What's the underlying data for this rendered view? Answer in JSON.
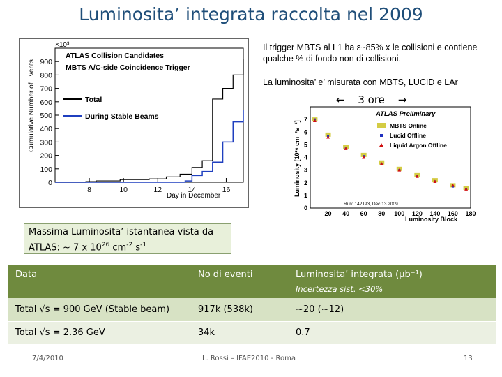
{
  "title": "Luminosita’ integrata raccolta nel 2009",
  "notes": {
    "line1": "Il trigger MBTS al L1 ha ε~85% x le collisioni e contiene qualche % di fondo non di collisioni.",
    "line2": "La luminosita’ e’ misurata con MBTS, LUCID e LAr",
    "arrow_left": "←",
    "arrow_label": "3 ore",
    "arrow_right": "→"
  },
  "lumi_box": {
    "line1": "Massima Luminosita’ istantanea vista da",
    "line2_prefix": "ATLAS: ~ 7 x 10",
    "exp1": "26",
    "line2_mid": " cm",
    "exp2": "-2",
    "line2_s": " s",
    "exp3": "-1"
  },
  "chart_data": [
    {
      "type": "line",
      "legend_header": [
        "ATLAS Collision Candidates",
        "MBTS A/C-side Coincidence Trigger"
      ],
      "xlabel": "Day in December",
      "ylabel": "Cumulative Number of Events",
      "y_multiplier": "×10³",
      "xlim": [
        6,
        17
      ],
      "ylim": [
        0,
        1000
      ],
      "x_ticks": [
        8,
        10,
        12,
        14,
        16
      ],
      "y_ticks": [
        0,
        100,
        200,
        300,
        400,
        500,
        600,
        700,
        800,
        900
      ],
      "legend_position": "middle-left",
      "colors": {
        "total": "#000000",
        "stable": "#1f3fbf"
      },
      "series": [
        {
          "name": "Total",
          "x": [
            6,
            7,
            7.8,
            8.4,
            9,
            9.8,
            10.5,
            11.5,
            12.5,
            13.3,
            14,
            14.6,
            15.2,
            15.8,
            16.4,
            17
          ],
          "y": [
            0,
            0,
            5,
            10,
            10,
            20,
            20,
            25,
            40,
            60,
            110,
            160,
            620,
            700,
            800,
            917
          ]
        },
        {
          "name": "During Stable Beams",
          "x": [
            6,
            13,
            13.6,
            14,
            14.6,
            15.2,
            15.8,
            16.4,
            17
          ],
          "y": [
            0,
            0,
            10,
            50,
            80,
            150,
            300,
            450,
            538
          ]
        }
      ]
    },
    {
      "type": "scatter",
      "title": "ATLAS Preliminary",
      "xlabel": "Luminosity Block",
      "ylabel": "Luminosity [10²⁶ cm⁻²s⁻¹]",
      "xlim": [
        0,
        180
      ],
      "ylim": [
        0,
        8
      ],
      "x_ticks": [
        20,
        40,
        60,
        80,
        100,
        120,
        140,
        160,
        180
      ],
      "y_ticks": [
        0,
        1,
        2,
        3,
        4,
        5,
        6,
        7
      ],
      "legend_position": "top-right",
      "run_label": "Run: 142193, Dec 13 2009",
      "series": [
        {
          "name": "MBTS Online",
          "color": "#d4cc44",
          "x": [
            5,
            20,
            40,
            60,
            80,
            100,
            120,
            140,
            160,
            175
          ],
          "y": [
            7,
            5.8,
            4.8,
            4.2,
            3.6,
            3.1,
            2.6,
            2.2,
            1.8,
            1.6
          ]
        },
        {
          "name": "Lucid Offline",
          "color": "#2030c0",
          "x": [
            5,
            20,
            40,
            60,
            80,
            100,
            120,
            140,
            160,
            175
          ],
          "y": [
            7,
            5.7,
            4.7,
            4.1,
            3.5,
            3.0,
            2.5,
            2.1,
            1.7,
            1.5
          ]
        },
        {
          "name": "Liquid Argon Offline",
          "color": "#d01010",
          "x": [
            5,
            20,
            40,
            60,
            80,
            100,
            120,
            140,
            160,
            175
          ],
          "y": [
            6.9,
            5.6,
            4.7,
            4.0,
            3.5,
            3.0,
            2.5,
            2.1,
            1.8,
            1.5
          ]
        }
      ]
    }
  ],
  "table": {
    "headers": [
      "Data",
      "No di eventi",
      "Luminosita’ integrata (μb⁻¹)"
    ],
    "header_sub": "Incertezza sist. <30%",
    "rows": [
      [
        "Total √s = 900 GeV  (Stable beam)",
        "917k  (538k)",
        "~20  (~12)"
      ],
      [
        "Total √s = 2.36 GeV",
        "34k",
        "0.7"
      ]
    ]
  },
  "footer": {
    "date": "7/4/2010",
    "author": "L. Rossi – IFAE2010 - Roma",
    "page": "13"
  }
}
